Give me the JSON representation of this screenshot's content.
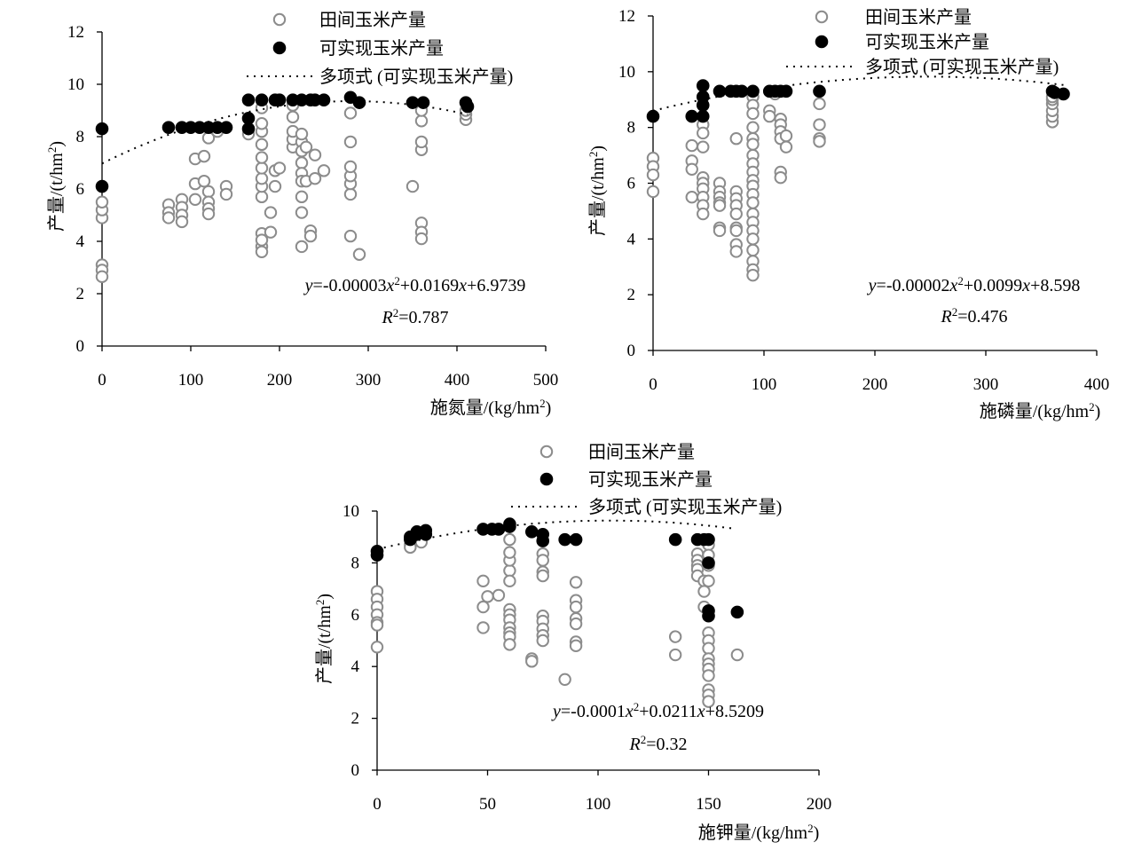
{
  "legend": {
    "field": "田间玉米产量",
    "attainable": "可实现玉米产量",
    "poly": "多项式 (可实现玉米产量)"
  },
  "colors": {
    "field_stroke": "#8c8c8c",
    "attainable_fill": "#000000"
  },
  "chart_data": [
    {
      "type": "scatter",
      "ylabel": "产量/(t/hm²)",
      "xlabel": "施氮量/(kg/hm²)",
      "xlim": [
        0,
        500
      ],
      "xticks": [
        0,
        100,
        200,
        300,
        400,
        500
      ],
      "ylim": [
        0,
        12
      ],
      "yticks": [
        0,
        2,
        4,
        6,
        8,
        10,
        12
      ],
      "equation": "y=-0.00003x²+0.0169x+6.9739",
      "r2": "R²=0.787",
      "trend": {
        "a": -3e-05,
        "b": 0.0169,
        "c": 6.9739,
        "x0": 0,
        "x1": 412
      },
      "attainable": [
        [
          0,
          8.3
        ],
        [
          0,
          6.1
        ],
        [
          75,
          8.35
        ],
        [
          90,
          8.35
        ],
        [
          100,
          8.35
        ],
        [
          110,
          8.35
        ],
        [
          120,
          8.35
        ],
        [
          130,
          8.35
        ],
        [
          140,
          8.35
        ],
        [
          165,
          8.7
        ],
        [
          165,
          8.3
        ],
        [
          165,
          9.4
        ],
        [
          180,
          9.4
        ],
        [
          195,
          9.4
        ],
        [
          200,
          9.4
        ],
        [
          215,
          9.4
        ],
        [
          225,
          9.4
        ],
        [
          235,
          9.4
        ],
        [
          240,
          9.4
        ],
        [
          250,
          9.4
        ],
        [
          280,
          9.5
        ],
        [
          290,
          9.3
        ],
        [
          350,
          9.3
        ],
        [
          362,
          9.3
        ],
        [
          410,
          9.3
        ],
        [
          412,
          9.15
        ]
      ],
      "field": [
        [
          0,
          3.1
        ],
        [
          0,
          2.9
        ],
        [
          0,
          2.65
        ],
        [
          0,
          4.9
        ],
        [
          0,
          5.2
        ],
        [
          0,
          5.5
        ],
        [
          75,
          5.4
        ],
        [
          75,
          5.1
        ],
        [
          75,
          4.9
        ],
        [
          90,
          5.6
        ],
        [
          90,
          5.3
        ],
        [
          90,
          5.0
        ],
        [
          90,
          4.75
        ],
        [
          105,
          7.15
        ],
        [
          105,
          6.2
        ],
        [
          105,
          5.6
        ],
        [
          115,
          7.25
        ],
        [
          115,
          6.3
        ],
        [
          120,
          7.95
        ],
        [
          120,
          5.9
        ],
        [
          120,
          5.5
        ],
        [
          120,
          5.25
        ],
        [
          120,
          5.05
        ],
        [
          130,
          8.3
        ],
        [
          130,
          8.2
        ],
        [
          140,
          6.1
        ],
        [
          140,
          5.8
        ],
        [
          165,
          8.1
        ],
        [
          180,
          4.3
        ],
        [
          180,
          3.8
        ],
        [
          180,
          3.6
        ],
        [
          180,
          4.05
        ],
        [
          180,
          5.7
        ],
        [
          180,
          6.1
        ],
        [
          180,
          6.4
        ],
        [
          180,
          6.8
        ],
        [
          180,
          7.2
        ],
        [
          180,
          7.7
        ],
        [
          180,
          8.2
        ],
        [
          180,
          8.5
        ],
        [
          180,
          9.1
        ],
        [
          190,
          5.1
        ],
        [
          190,
          4.35
        ],
        [
          195,
          6.7
        ],
        [
          195,
          6.1
        ],
        [
          200,
          6.8
        ],
        [
          215,
          7.6
        ],
        [
          215,
          7.9
        ],
        [
          215,
          8.2
        ],
        [
          215,
          8.75
        ],
        [
          215,
          9.2
        ],
        [
          225,
          7.8
        ],
        [
          225,
          7.45
        ],
        [
          225,
          7.0
        ],
        [
          225,
          6.6
        ],
        [
          225,
          6.3
        ],
        [
          225,
          5.7
        ],
        [
          225,
          5.1
        ],
        [
          225,
          3.8
        ],
        [
          225,
          8.1
        ],
        [
          230,
          6.3
        ],
        [
          230,
          7.6
        ],
        [
          235,
          4.4
        ],
        [
          235,
          4.2
        ],
        [
          240,
          7.3
        ],
        [
          240,
          6.4
        ],
        [
          250,
          6.7
        ],
        [
          280,
          4.2
        ],
        [
          280,
          5.8
        ],
        [
          280,
          6.2
        ],
        [
          280,
          6.5
        ],
        [
          280,
          6.85
        ],
        [
          280,
          7.8
        ],
        [
          280,
          8.9
        ],
        [
          290,
          3.5
        ],
        [
          350,
          6.1
        ],
        [
          360,
          4.7
        ],
        [
          360,
          4.35
        ],
        [
          360,
          4.1
        ],
        [
          360,
          7.5
        ],
        [
          360,
          7.8
        ],
        [
          360,
          8.6
        ],
        [
          360,
          9.0
        ],
        [
          410,
          8.65
        ],
        [
          410,
          8.85
        ],
        [
          410,
          9.0
        ]
      ]
    },
    {
      "type": "scatter",
      "ylabel": "产量/(t/hm²)",
      "xlabel": "施磷量/(kg/hm²)",
      "xlim": [
        0,
        400
      ],
      "xticks": [
        0,
        100,
        200,
        300,
        400
      ],
      "ylim": [
        0,
        12
      ],
      "yticks": [
        0,
        2,
        4,
        6,
        8,
        10,
        12
      ],
      "equation": "y=-0.00002x²+0.0099x+8.598",
      "r2": "R²=0.476",
      "trend": {
        "a": -2e-05,
        "b": 0.0099,
        "c": 8.598,
        "x0": 0,
        "x1": 370
      },
      "attainable": [
        [
          0,
          8.4
        ],
        [
          35,
          8.4
        ],
        [
          45,
          8.4
        ],
        [
          45,
          8.8
        ],
        [
          45,
          9.1
        ],
        [
          45,
          9.5
        ],
        [
          60,
          9.3
        ],
        [
          70,
          9.3
        ],
        [
          75,
          9.3
        ],
        [
          80,
          9.3
        ],
        [
          90,
          9.3
        ],
        [
          105,
          9.3
        ],
        [
          110,
          9.3
        ],
        [
          115,
          9.3
        ],
        [
          120,
          9.3
        ],
        [
          150,
          9.3
        ],
        [
          360,
          9.3
        ],
        [
          362,
          9.25
        ],
        [
          370,
          9.2
        ]
      ],
      "field": [
        [
          0,
          6.9
        ],
        [
          0,
          6.6
        ],
        [
          0,
          6.3
        ],
        [
          0,
          5.7
        ],
        [
          35,
          7.35
        ],
        [
          35,
          6.8
        ],
        [
          35,
          6.5
        ],
        [
          35,
          5.5
        ],
        [
          45,
          8.1
        ],
        [
          45,
          7.8
        ],
        [
          45,
          7.3
        ],
        [
          45,
          6.2
        ],
        [
          45,
          6.0
        ],
        [
          45,
          5.8
        ],
        [
          45,
          5.5
        ],
        [
          45,
          5.2
        ],
        [
          45,
          4.9
        ],
        [
          60,
          6.0
        ],
        [
          60,
          5.7
        ],
        [
          60,
          5.5
        ],
        [
          60,
          5.3
        ],
        [
          60,
          5.2
        ],
        [
          60,
          4.4
        ],
        [
          60,
          4.3
        ],
        [
          75,
          5.7
        ],
        [
          75,
          5.45
        ],
        [
          75,
          5.2
        ],
        [
          75,
          4.9
        ],
        [
          75,
          4.4
        ],
        [
          75,
          4.3
        ],
        [
          75,
          3.8
        ],
        [
          75,
          3.55
        ],
        [
          75,
          7.6
        ],
        [
          90,
          9.1
        ],
        [
          90,
          8.8
        ],
        [
          90,
          8.5
        ],
        [
          90,
          8.0
        ],
        [
          90,
          7.6
        ],
        [
          90,
          7.4
        ],
        [
          90,
          7.0
        ],
        [
          90,
          6.7
        ],
        [
          90,
          6.4
        ],
        [
          90,
          6.1
        ],
        [
          90,
          5.9
        ],
        [
          90,
          5.6
        ],
        [
          90,
          5.3
        ],
        [
          90,
          4.9
        ],
        [
          90,
          4.6
        ],
        [
          90,
          4.3
        ],
        [
          90,
          4.0
        ],
        [
          90,
          3.6
        ],
        [
          90,
          3.2
        ],
        [
          90,
          2.9
        ],
        [
          90,
          2.7
        ],
        [
          105,
          8.6
        ],
        [
          105,
          8.4
        ],
        [
          110,
          9.2
        ],
        [
          115,
          8.3
        ],
        [
          115,
          8.1
        ],
        [
          115,
          7.85
        ],
        [
          115,
          7.6
        ],
        [
          115,
          6.4
        ],
        [
          115,
          6.2
        ],
        [
          120,
          7.7
        ],
        [
          120,
          7.3
        ],
        [
          150,
          8.85
        ],
        [
          150,
          8.1
        ],
        [
          150,
          7.6
        ],
        [
          150,
          7.5
        ],
        [
          360,
          8.2
        ],
        [
          360,
          8.4
        ],
        [
          360,
          8.6
        ],
        [
          360,
          8.85
        ],
        [
          360,
          9.0
        ],
        [
          360,
          9.1
        ]
      ]
    },
    {
      "type": "scatter",
      "ylabel": "产量/(t/hm²)",
      "xlabel": "施钾量/(kg/hm²)",
      "xlim": [
        0,
        200
      ],
      "xticks": [
        0,
        50,
        100,
        150,
        200
      ],
      "ylim": [
        0,
        10
      ],
      "yticks": [
        0,
        2,
        4,
        6,
        8,
        10
      ],
      "equation": "y=-0.0001x²+0.0211x+8.5209",
      "r2": "R²=0.32",
      "trend": {
        "a": -0.0001,
        "b": 0.0211,
        "c": 8.5209,
        "x0": 0,
        "x1": 162
      },
      "attainable": [
        [
          0,
          8.3
        ],
        [
          0,
          8.45
        ],
        [
          15,
          8.9
        ],
        [
          15,
          9.0
        ],
        [
          18,
          9.1
        ],
        [
          18,
          9.2
        ],
        [
          22,
          9.25
        ],
        [
          22,
          9.1
        ],
        [
          48,
          9.3
        ],
        [
          52,
          9.3
        ],
        [
          55,
          9.3
        ],
        [
          60,
          9.4
        ],
        [
          60,
          9.5
        ],
        [
          70,
          9.2
        ],
        [
          75,
          9.1
        ],
        [
          75,
          8.85
        ],
        [
          85,
          8.9
        ],
        [
          90,
          8.9
        ],
        [
          135,
          8.9
        ],
        [
          145,
          8.9
        ],
        [
          148,
          8.9
        ],
        [
          150,
          8.9
        ],
        [
          150,
          8.0
        ],
        [
          150,
          6.15
        ],
        [
          150,
          5.95
        ],
        [
          163,
          6.1
        ]
      ],
      "field": [
        [
          0,
          6.9
        ],
        [
          0,
          6.6
        ],
        [
          0,
          6.3
        ],
        [
          0,
          6.0
        ],
        [
          0,
          5.7
        ],
        [
          0,
          5.6
        ],
        [
          0,
          4.75
        ],
        [
          15,
          8.7
        ],
        [
          15,
          8.6
        ],
        [
          20,
          8.9
        ],
        [
          20,
          8.8
        ],
        [
          48,
          7.3
        ],
        [
          48,
          6.3
        ],
        [
          48,
          5.5
        ],
        [
          50,
          6.7
        ],
        [
          55,
          6.75
        ],
        [
          60,
          7.7
        ],
        [
          60,
          7.3
        ],
        [
          60,
          8.1
        ],
        [
          60,
          8.4
        ],
        [
          60,
          8.9
        ],
        [
          60,
          6.2
        ],
        [
          60,
          6.0
        ],
        [
          60,
          5.8
        ],
        [
          60,
          5.5
        ],
        [
          60,
          5.3
        ],
        [
          60,
          5.15
        ],
        [
          60,
          4.85
        ],
        [
          70,
          4.3
        ],
        [
          70,
          4.2
        ],
        [
          75,
          8.35
        ],
        [
          75,
          8.1
        ],
        [
          75,
          7.65
        ],
        [
          75,
          7.5
        ],
        [
          75,
          5.95
        ],
        [
          75,
          5.75
        ],
        [
          75,
          5.45
        ],
        [
          75,
          5.2
        ],
        [
          75,
          5.0
        ],
        [
          85,
          3.5
        ],
        [
          90,
          7.25
        ],
        [
          90,
          6.55
        ],
        [
          90,
          6.3
        ],
        [
          90,
          5.85
        ],
        [
          90,
          5.65
        ],
        [
          90,
          4.95
        ],
        [
          90,
          4.8
        ],
        [
          135,
          5.15
        ],
        [
          135,
          4.45
        ],
        [
          145,
          8.35
        ],
        [
          145,
          8.1
        ],
        [
          145,
          7.9
        ],
        [
          145,
          7.75
        ],
        [
          145,
          7.5
        ],
        [
          148,
          7.3
        ],
        [
          148,
          6.9
        ],
        [
          148,
          6.3
        ],
        [
          150,
          8.7
        ],
        [
          150,
          8.3
        ],
        [
          150,
          7.9
        ],
        [
          150,
          7.3
        ],
        [
          150,
          5.3
        ],
        [
          150,
          5.0
        ],
        [
          150,
          4.7
        ],
        [
          150,
          4.3
        ],
        [
          150,
          4.1
        ],
        [
          150,
          3.9
        ],
        [
          150,
          3.65
        ],
        [
          150,
          3.1
        ],
        [
          150,
          2.9
        ],
        [
          150,
          2.65
        ],
        [
          163,
          4.45
        ]
      ]
    }
  ]
}
